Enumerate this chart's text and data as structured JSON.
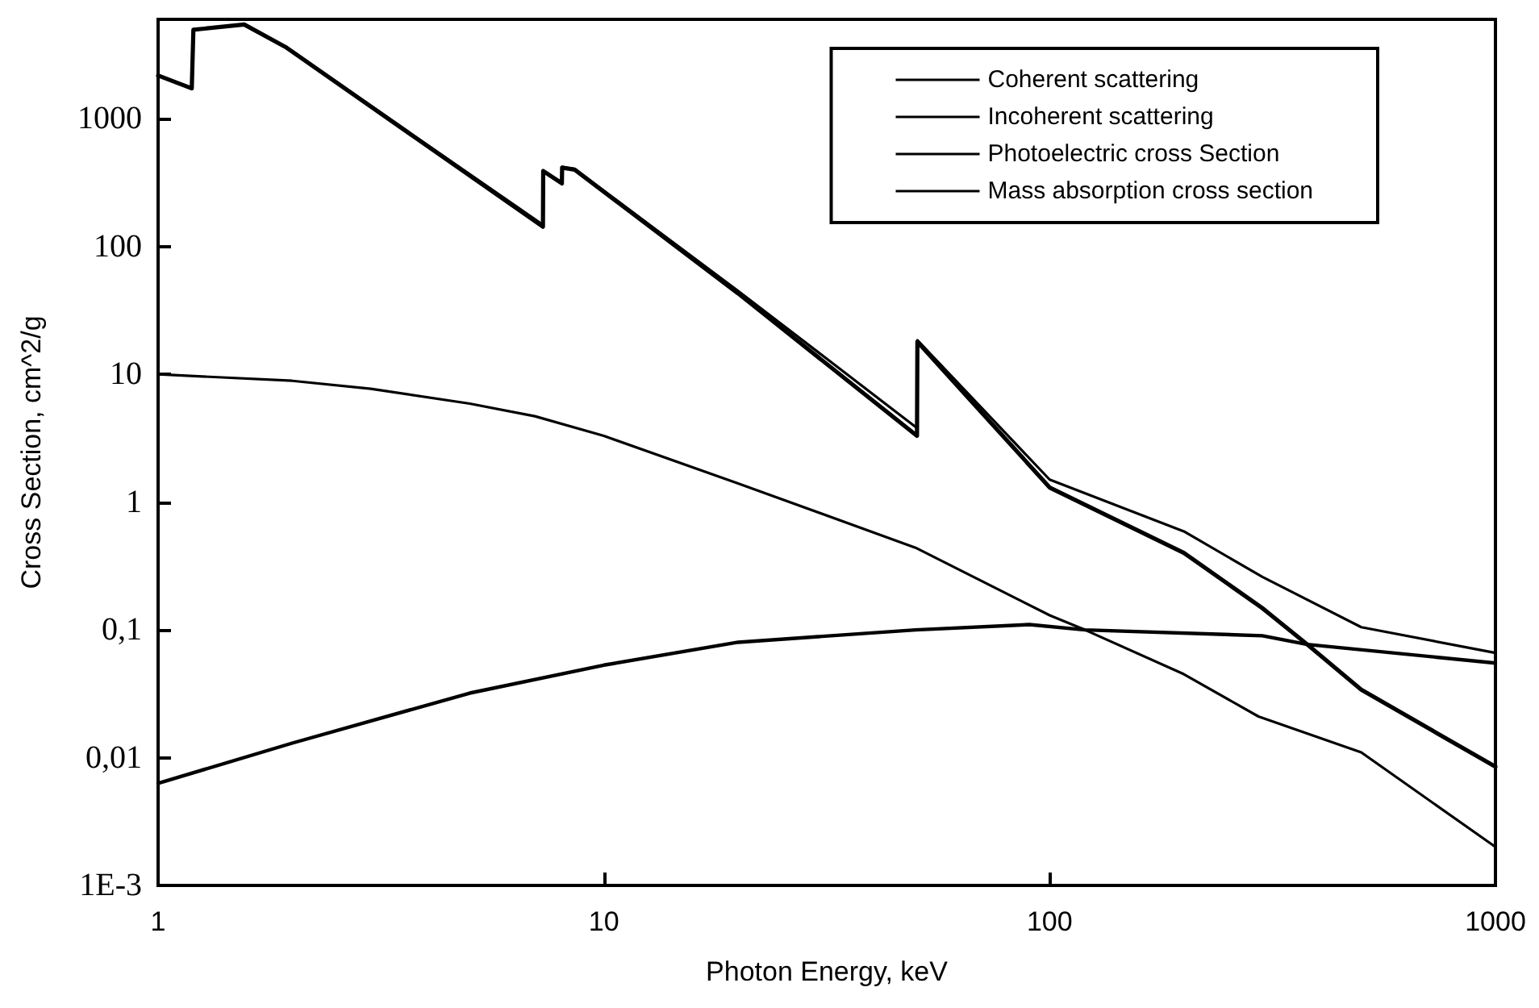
{
  "chart_data": {
    "type": "line",
    "xlabel": "Photon Energy, keV",
    "ylabel": "Cross Section, cm^2/g",
    "log": "xy",
    "grid": false,
    "legend": "top right",
    "marker": "none",
    "line_style": "solid",
    "xlim": [
      1,
      1000
    ],
    "ylim": [
      0.001,
      6000
    ],
    "xticks": [
      1,
      10,
      100,
      1000
    ],
    "yticks": [
      {
        "value": 0.001,
        "label": "1E-3"
      },
      {
        "value": 0.01,
        "label": "0,01"
      },
      {
        "value": 0.1,
        "label": "0,1"
      },
      1,
      10,
      100,
      1000
    ],
    "series": [
      {
        "name": "Coherent scattering",
        "color": "#000000",
        "x": [
          1,
          2,
          3,
          5,
          7,
          10,
          20,
          50,
          100,
          120,
          200,
          294,
          500,
          1000
        ],
        "values": [
          10,
          8.9,
          7.7,
          5.9,
          4.7,
          3.3,
          1.4,
          0.44,
          0.13,
          0.1,
          0.045,
          0.021,
          0.011,
          0.002
        ]
      },
      {
        "name": "Incoherent scattering",
        "color": "#000000",
        "x": [
          1,
          2,
          5,
          10,
          20,
          50,
          90,
          120,
          300,
          378,
          1000
        ],
        "values": [
          0.0063,
          0.013,
          0.032,
          0.053,
          0.08,
          0.1,
          0.11,
          0.1,
          0.09,
          0.077,
          0.055
        ]
      },
      {
        "name": "Photoelectric cross Section",
        "color": "#000000",
        "x": [
          1,
          1.19,
          1.2,
          1.56,
          1.93,
          7.3,
          7.31,
          8.05,
          8.06,
          8.6,
          20,
          50.4,
          50.5,
          100,
          200,
          300,
          378,
          500,
          1000
        ],
        "values": [
          2180,
          1730,
          4970,
          5470,
          3650,
          143,
          390,
          312,
          415,
          400,
          43,
          3.3,
          18,
          1.3,
          0.4,
          0.148,
          0.077,
          0.034,
          0.0085
        ]
      },
      {
        "name": "Mass absorption cross section",
        "color": "#000000",
        "x": [
          1,
          1.19,
          1.2,
          1.56,
          1.93,
          7.3,
          7.31,
          8.05,
          8.06,
          8.6,
          20,
          50.4,
          50.5,
          100,
          200,
          300,
          500,
          1000
        ],
        "values": [
          2190,
          1740,
          4980,
          5480,
          3660,
          148,
          395,
          317,
          420,
          405,
          45,
          3.8,
          18.5,
          1.5,
          0.59,
          0.26,
          0.105,
          0.066
        ]
      }
    ]
  }
}
